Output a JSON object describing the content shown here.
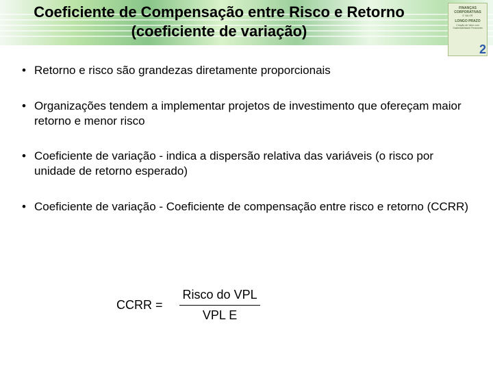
{
  "slide": {
    "title": "Coeficiente de Compensação entre Risco e Retorno (coeficiente de variação)",
    "number": "2",
    "bullets": [
      "Retorno e risco são grandezas diretamente proporcionais",
      "Organizações tendem a implementar projetos de investimento que ofereçam maior retorno e menor risco",
      "Coeficiente de variação - indica a dispersão relativa das variáveis (o risco por unidade de retorno esperado)",
      "Coeficiente de variação - Coeficiente de compensação entre risco e retorno (CCRR)"
    ],
    "formula": {
      "label": "CCRR =",
      "numerator": "Risco do VPL",
      "denominator": "VPL E"
    },
    "book": {
      "line1": "FINANÇAS CORPORATIVAS",
      "line2": "E VALOR",
      "line3": "LONGO PRAZO",
      "line4": "Criação de Valor com Sustentabilidade Financeira"
    }
  },
  "style": {
    "header_stripe_positions": [
      20,
      28,
      36,
      44,
      52
    ]
  }
}
